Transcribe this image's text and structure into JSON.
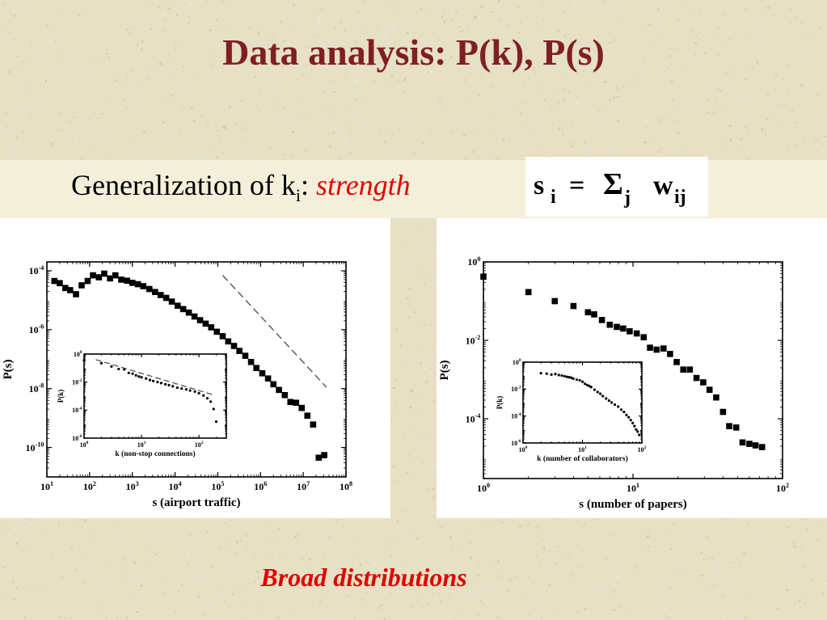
{
  "slide": {
    "title": "Data analysis: P(k), P(s)",
    "subtitle_prefix": "Generalization of k",
    "subtitle_sub": "i",
    "subtitle_colon": ": ",
    "subtitle_emphasis": "strength",
    "formula": {
      "lhs": "s",
      "lhs_sub": "i",
      "eq": "=",
      "sigma": "Σ",
      "sigma_sub": "j",
      "w": "w",
      "w_sub": "ij"
    },
    "footer": "Broad distributions",
    "colors": {
      "title": "#7f1f24",
      "emphasis": "#e10000",
      "background": "#e6e0c4"
    }
  },
  "chart_data": [
    {
      "id": "airport",
      "type": "scatter",
      "xlabel": "s (airport traffic)",
      "ylabel": "P(s)",
      "xscale": "log",
      "yscale": "log",
      "xlim": [
        10,
        100000000
      ],
      "ylim": [
        1e-11,
        0.0002
      ],
      "xticks": [
        {
          "v": 10,
          "m": "10",
          "e": "1"
        },
        {
          "v": 100,
          "m": "10",
          "e": "2"
        },
        {
          "v": 1000,
          "m": "10",
          "e": "3"
        },
        {
          "v": 10000,
          "m": "10",
          "e": "4"
        },
        {
          "v": 100000,
          "m": "10",
          "e": "5"
        },
        {
          "v": 1000000,
          "m": "10",
          "e": "6"
        },
        {
          "v": 10000000,
          "m": "10",
          "e": "7"
        },
        {
          "v": 100000000,
          "m": "10",
          "e": "8"
        }
      ],
      "yticks": [
        {
          "v": 0.0001,
          "m": "10",
          "e": "-4"
        },
        {
          "v": 1e-06,
          "m": "10",
          "e": "-6"
        },
        {
          "v": 1e-08,
          "m": "10",
          "e": "-8"
        },
        {
          "v": 1e-10,
          "m": "10",
          "e": "-10"
        }
      ],
      "series": [
        {
          "marker": "square",
          "x": [
            15,
            20,
            27,
            35,
            48,
            65,
            90,
            120,
            165,
            220,
            300,
            400,
            550,
            750,
            1000,
            1350,
            1800,
            2500,
            3400,
            4600,
            6200,
            8400,
            11500,
            15500,
            21000,
            28500,
            38500,
            52000,
            70000,
            95000,
            130000,
            175000,
            240000,
            320000,
            440000,
            600000,
            800000,
            1100000,
            1500000,
            2000000,
            2700000,
            3700000,
            5000000,
            6800000,
            9200000,
            12500000,
            17000000,
            23000000,
            31000000
          ],
          "y": [
            4.5e-05,
            3.8e-05,
            2.6e-05,
            2.2e-05,
            1.6e-05,
            3.2e-05,
            4.5e-05,
            7e-05,
            6e-05,
            8e-05,
            5.5e-05,
            7e-05,
            5e-05,
            4.6e-05,
            3.9e-05,
            3.5e-05,
            3e-05,
            2.4e-05,
            1.9e-05,
            1.5e-05,
            1.2e-05,
            9e-06,
            6.5e-06,
            5e-06,
            3.8e-06,
            2.8e-06,
            2.1e-06,
            1.6e-06,
            1.2e-06,
            8.5e-07,
            6e-07,
            4e-07,
            2.8e-07,
            1.9e-07,
            1.3e-07,
            8e-08,
            5e-08,
            3.3e-08,
            2.2e-08,
            1.4e-08,
            9e-09,
            6e-09,
            3.5e-09,
            3.3e-09,
            2.2e-09,
            1.2e-09,
            6e-10,
            4.5e-11,
            5.5e-11
          ]
        }
      ],
      "reference_line": {
        "style": "dashed",
        "x": [
          130000,
          35000000
        ],
        "y": [
          7e-05,
          1.1e-08
        ]
      },
      "inset": {
        "xlabel": "k (non-stop connections)",
        "ylabel": "P(k)",
        "xscale": "log",
        "yscale": "log",
        "xlim": [
          1,
          300
        ],
        "ylim": [
          1e-06,
          1
        ],
        "xticks": [
          {
            "v": 1,
            "m": "10",
            "e": "0"
          },
          {
            "v": 10,
            "m": "10",
            "e": "1"
          },
          {
            "v": 100,
            "m": "10",
            "e": "2"
          }
        ],
        "yticks": [
          {
            "v": 1,
            "m": "10",
            "e": "0"
          },
          {
            "v": 0.01,
            "m": "10",
            "e": "-2"
          },
          {
            "v": 0.0001,
            "m": "10",
            "e": "-4"
          },
          {
            "v": 1e-06,
            "m": "10",
            "e": "-6"
          }
        ],
        "x": [
          1,
          2,
          3,
          4,
          5,
          6,
          7,
          8,
          9,
          10,
          12,
          14,
          16,
          19,
          22,
          26,
          30,
          35,
          42,
          50,
          60,
          70,
          85,
          100,
          120,
          140,
          160,
          180,
          200
        ],
        "y": [
          0.35,
          0.22,
          0.13,
          0.085,
          0.08,
          0.045,
          0.04,
          0.03,
          0.025,
          0.022,
          0.018,
          0.014,
          0.012,
          0.01,
          0.0085,
          0.007,
          0.006,
          0.005,
          0.004,
          0.0035,
          0.003,
          0.0025,
          0.0021,
          0.0016,
          0.0011,
          0.0007,
          0.0004,
          0.00012,
          1.5e-05
        ],
        "reference_line": {
          "x": [
            1.6,
            170
          ],
          "y": [
            0.4,
            0.0013
          ]
        }
      }
    },
    {
      "id": "papers",
      "type": "scatter",
      "xlabel": "s (number of papers)",
      "ylabel": "P(s)",
      "xscale": "log",
      "yscale": "log",
      "xlim": [
        1,
        100
      ],
      "ylim": [
        3e-06,
        1
      ],
      "xticks": [
        {
          "v": 1,
          "m": "10",
          "e": "0"
        },
        {
          "v": 10,
          "m": "10",
          "e": "1"
        },
        {
          "v": 100,
          "m": "10",
          "e": "2"
        }
      ],
      "yticks": [
        {
          "v": 1,
          "m": "10",
          "e": "0"
        },
        {
          "v": 0.01,
          "m": "10",
          "e": "-2"
        },
        {
          "v": 0.0001,
          "m": "10",
          "e": "-4"
        }
      ],
      "series": [
        {
          "marker": "square",
          "x": [
            1,
            2,
            3,
            4,
            5,
            5.5,
            6.2,
            7,
            7.8,
            8.6,
            9.5,
            10.6,
            11.8,
            13,
            14.4,
            16,
            17.7,
            19.6,
            21.7,
            24,
            26.6,
            29.5,
            32.5,
            36,
            40,
            44,
            49,
            54,
            60,
            66,
            73
          ],
          "y": [
            0.42,
            0.17,
            0.1,
            0.075,
            0.052,
            0.046,
            0.033,
            0.025,
            0.022,
            0.02,
            0.017,
            0.015,
            0.012,
            0.0065,
            0.0058,
            0.0062,
            0.0045,
            0.0028,
            0.0018,
            0.0018,
            0.0011,
            0.00085,
            0.00055,
            0.00035,
            0.00015,
            6.5e-05,
            6e-05,
            2.5e-05,
            2.3e-05,
            2.1e-05,
            1.9e-05
          ]
        }
      ],
      "inset": {
        "xlabel": "k (number of collaborators)",
        "ylabel": "P(k)",
        "xscale": "log",
        "yscale": "log",
        "xlim": [
          1,
          100
        ],
        "ylim": [
          1e-06,
          1
        ],
        "xticks": [
          {
            "v": 1,
            "m": "10",
            "e": "0"
          },
          {
            "v": 10,
            "m": "10",
            "e": "1"
          },
          {
            "v": 100,
            "m": "10",
            "e": "2"
          }
        ],
        "yticks": [
          {
            "v": 1,
            "m": "10",
            "e": "0"
          },
          {
            "v": 0.01,
            "m": "10",
            "e": "-2"
          },
          {
            "v": 0.0001,
            "m": "10",
            "e": "-4"
          },
          {
            "v": 1e-06,
            "m": "10",
            "e": "-6"
          }
        ],
        "x": [
          2,
          2.5,
          3,
          3.5,
          4,
          4.5,
          5,
          5.5,
          6,
          6.5,
          7,
          8,
          9,
          10,
          11,
          12,
          13,
          14,
          16,
          18,
          20,
          22,
          25,
          28,
          31,
          35,
          40,
          45,
          50,
          55,
          60,
          65,
          70,
          75,
          80,
          85,
          90
        ],
        "y": [
          0.15,
          0.14,
          0.12,
          0.13,
          0.11,
          0.1,
          0.09,
          0.08,
          0.075,
          0.07,
          0.06,
          0.05,
          0.045,
          0.035,
          0.025,
          0.02,
          0.017,
          0.014,
          0.009,
          0.006,
          0.0045,
          0.003,
          0.002,
          0.0014,
          0.001,
          0.0007,
          0.0005,
          0.0003,
          0.0002,
          0.00012,
          8e-05,
          5e-05,
          3e-05,
          1.8e-05,
          1e-05,
          7e-06,
          4e-06
        ]
      }
    }
  ]
}
